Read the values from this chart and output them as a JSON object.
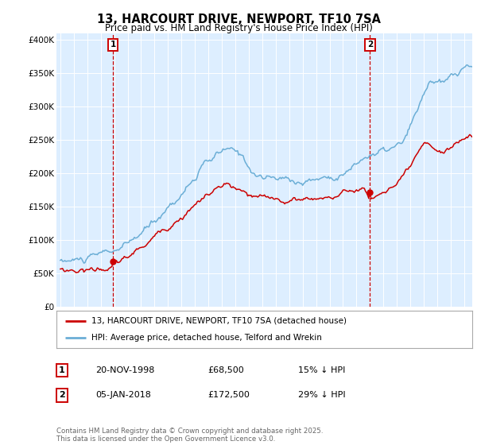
{
  "title": "13, HARCOURT DRIVE, NEWPORT, TF10 7SA",
  "subtitle": "Price paid vs. HM Land Registry's House Price Index (HPI)",
  "legend_line1": "13, HARCOURT DRIVE, NEWPORT, TF10 7SA (detached house)",
  "legend_line2": "HPI: Average price, detached house, Telford and Wrekin",
  "annotation1_label": "1",
  "annotation1_date_str": "20-NOV-1998",
  "annotation1_price_str": "£68,500",
  "annotation1_hpi_str": "15% ↓ HPI",
  "annotation1_year": 1998.89,
  "annotation1_price": 68500,
  "annotation2_label": "2",
  "annotation2_date_str": "05-JAN-2018",
  "annotation2_price_str": "£172,500",
  "annotation2_hpi_str": "29% ↓ HPI",
  "annotation2_year": 2018.01,
  "annotation2_price": 172500,
  "hpi_color": "#6baed6",
  "price_color": "#cc0000",
  "bg_color": "#ddeeff",
  "footer_text": "Contains HM Land Registry data © Crown copyright and database right 2025.\nThis data is licensed under the Open Government Licence v3.0.",
  "ylim": [
    0,
    410000
  ],
  "yticks": [
    0,
    50000,
    100000,
    150000,
    200000,
    250000,
    300000,
    350000,
    400000
  ],
  "ytick_labels": [
    "£0",
    "£50K",
    "£100K",
    "£150K",
    "£200K",
    "£250K",
    "£300K",
    "£350K",
    "£400K"
  ],
  "xlim_start": 1994.7,
  "xlim_end": 2025.6,
  "hpi_keypoints_x": [
    1995.0,
    1996.5,
    1998.0,
    2000.0,
    2002.0,
    2004.0,
    2005.5,
    2007.3,
    2008.5,
    2009.5,
    2011.0,
    2013.0,
    2015.0,
    2016.5,
    2018.0,
    2019.5,
    2020.5,
    2021.5,
    2022.5,
    2023.5,
    2024.5,
    2025.3
  ],
  "hpi_keypoints_y": [
    70000,
    72000,
    76000,
    88000,
    120000,
    170000,
    210000,
    232000,
    218000,
    196000,
    188000,
    188000,
    200000,
    218000,
    243000,
    248000,
    255000,
    295000,
    345000,
    337000,
    350000,
    360000
  ],
  "price_keypoints_x": [
    1995.0,
    1996.0,
    1997.5,
    1998.89,
    2000.5,
    2002.5,
    2004.5,
    2006.0,
    2007.3,
    2009.0,
    2010.5,
    2012.0,
    2014.0,
    2016.0,
    2017.5,
    2018.01,
    2019.0,
    2020.5,
    2022.0,
    2023.5,
    2024.5,
    2025.3
  ],
  "price_keypoints_y": [
    57000,
    58000,
    62000,
    68500,
    85000,
    118000,
    160000,
    185000,
    197000,
    173000,
    163000,
    163000,
    170000,
    180000,
    192000,
    172500,
    188000,
    205000,
    240000,
    228000,
    242000,
    255000
  ],
  "hpi_noise_seed": 10,
  "hpi_noise_scale": 1800,
  "price_noise_seed": 20,
  "price_noise_scale": 1400
}
